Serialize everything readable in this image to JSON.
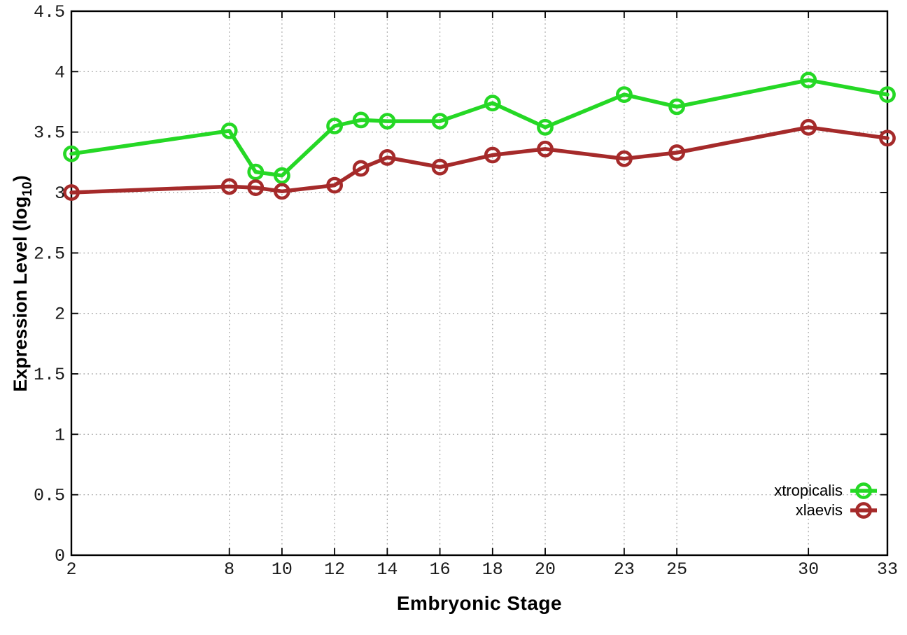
{
  "figure": {
    "background": "#ffffff"
  },
  "chart_data": {
    "type": "line",
    "title": "",
    "xlabel": "Embryonic Stage",
    "ylabel": {
      "prefix": "Expression Level (log",
      "subscript": "10",
      "suffix": ")"
    },
    "xlim": [
      2,
      33
    ],
    "ylim": [
      0,
      4.5
    ],
    "grid": true,
    "grid_style": "dotted",
    "legend_position": "inside-bottom-right",
    "marker": "open-circle",
    "axis_color": "#000000",
    "grid_color": "#9e9e9e",
    "xticks": {
      "values": [
        2,
        8,
        10,
        12,
        14,
        16,
        18,
        20,
        23,
        25,
        30,
        33
      ],
      "labels": [
        "2",
        "8",
        "10",
        "12",
        "14",
        "16",
        "18",
        "20",
        "23",
        "25",
        "30",
        "33"
      ]
    },
    "yticks": {
      "values": [
        0,
        0.5,
        1,
        1.5,
        2,
        2.5,
        3,
        3.5,
        4,
        4.5
      ],
      "labels": [
        "0",
        "0.5",
        "1",
        "1.5",
        "2",
        "2.5",
        "3",
        "3.5",
        "4",
        "4.5"
      ]
    },
    "x": [
      2,
      8,
      9,
      10,
      12,
      13,
      14,
      16,
      18,
      20,
      23,
      25,
      30,
      33
    ],
    "series": [
      {
        "name": "xtropicalis",
        "color": "#25d825",
        "marker": "open-circle",
        "values": [
          3.32,
          3.51,
          3.17,
          3.14,
          3.55,
          3.6,
          3.59,
          3.59,
          3.74,
          3.54,
          3.81,
          3.71,
          3.93,
          3.81
        ]
      },
      {
        "name": "xlaevis",
        "color": "#a52a2a",
        "marker": "open-circle",
        "values": [
          3.0,
          3.05,
          3.04,
          3.01,
          3.06,
          3.2,
          3.29,
          3.21,
          3.31,
          3.36,
          3.28,
          3.33,
          3.54,
          3.45
        ]
      }
    ]
  }
}
